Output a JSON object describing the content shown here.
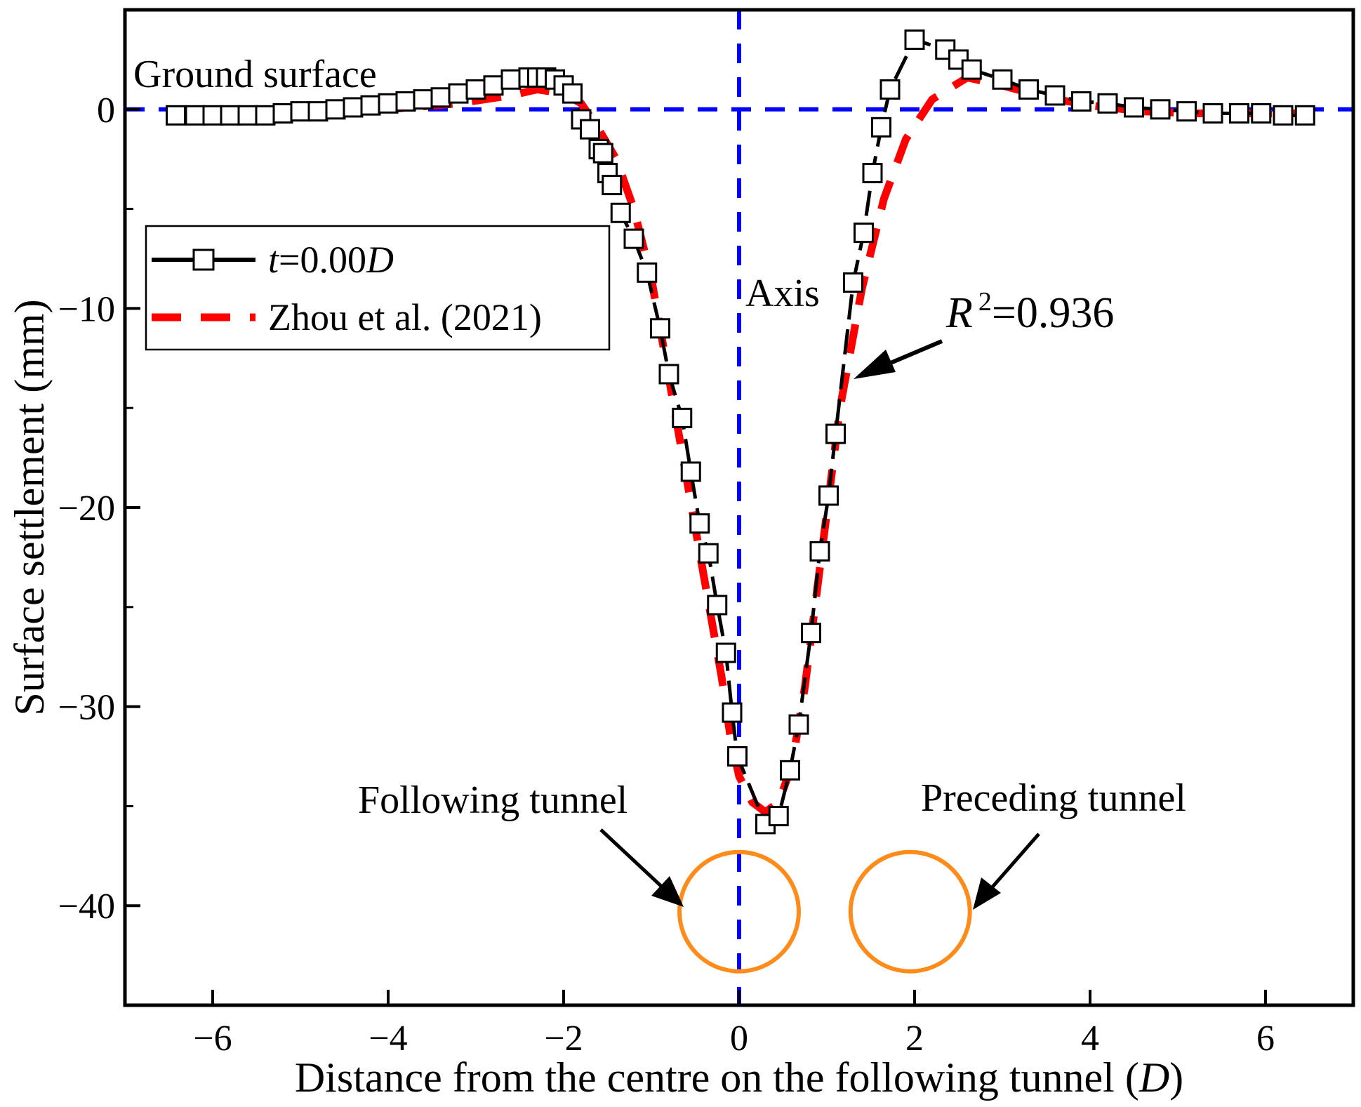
{
  "chart_data": {
    "type": "line",
    "xlabel": "Distance from the centre on the following tunnel (D)",
    "xlabel_main": "Distance from the centre on the following tunnel (",
    "xlabel_unit": "D",
    "xlabel_close": ")",
    "ylabel": "Surface settlement (mm)",
    "xlim": [
      -7,
      7
    ],
    "ylim": [
      -45,
      5
    ],
    "xticks": [
      -6,
      -4,
      -2,
      0,
      2,
      4,
      6
    ],
    "xtick_labels": [
      "−6",
      "−4",
      "−2",
      "0",
      "2",
      "4",
      "6"
    ],
    "yticks": [
      -40,
      -30,
      -20,
      -10,
      0
    ],
    "ytick_labels": [
      "−40",
      "−30",
      "−20",
      "−10",
      "0"
    ],
    "grid": false,
    "legend_position": "upper-left",
    "series": [
      {
        "name": "t=0.00D",
        "legend_italic_t": "t",
        "legend_mid": "=0.00",
        "legend_italic_d": "D",
        "color": "#000000",
        "marker": "open-square",
        "x": [
          -6.42,
          -6.2,
          -6.0,
          -5.8,
          -5.6,
          -5.4,
          -5.2,
          -5.0,
          -4.8,
          -4.6,
          -4.4,
          -4.2,
          -4.0,
          -3.8,
          -3.6,
          -3.4,
          -3.2,
          -3.0,
          -2.8,
          -2.6,
          -2.4,
          -2.3,
          -2.2,
          -2.1,
          -2.0,
          -1.9,
          -1.8,
          -1.7,
          -1.6,
          -1.55,
          -1.5,
          -1.45,
          -1.35,
          -1.2,
          -1.05,
          -0.9,
          -0.8,
          -0.65,
          -0.55,
          -0.45,
          -0.35,
          -0.25,
          -0.15,
          -0.08,
          -0.02,
          0.3,
          0.45,
          0.58,
          0.68,
          0.82,
          0.92,
          1.02,
          1.1,
          1.3,
          1.42,
          1.52,
          1.62,
          1.72,
          2.0,
          2.35,
          2.5,
          2.65,
          3.0,
          3.3,
          3.6,
          3.9,
          4.2,
          4.5,
          4.8,
          5.1,
          5.4,
          5.7,
          5.95,
          6.2,
          6.45
        ],
        "y": [
          -0.3,
          -0.3,
          -0.3,
          -0.3,
          -0.3,
          -0.3,
          -0.2,
          -0.1,
          -0.1,
          0.0,
          0.1,
          0.2,
          0.3,
          0.4,
          0.5,
          0.6,
          0.8,
          1.0,
          1.2,
          1.5,
          1.6,
          1.6,
          1.6,
          1.5,
          1.2,
          0.8,
          -0.5,
          -1.0,
          -2.0,
          -2.2,
          -3.2,
          -3.8,
          -5.2,
          -6.5,
          -8.2,
          -11.0,
          -13.3,
          -15.5,
          -18.2,
          -20.8,
          -22.3,
          -24.9,
          -27.3,
          -30.3,
          -32.5,
          -35.9,
          -35.5,
          -33.2,
          -30.9,
          -26.3,
          -22.2,
          -19.4,
          -16.3,
          -8.7,
          -6.2,
          -3.2,
          -0.9,
          1.0,
          3.5,
          3.0,
          2.5,
          2.0,
          1.5,
          1.0,
          0.7,
          0.4,
          0.3,
          0.1,
          0.0,
          -0.1,
          -0.2,
          -0.2,
          -0.2,
          -0.3,
          -0.3
        ]
      },
      {
        "name": "Zhou et al. (2021)",
        "color": "#ff0000",
        "x": [
          -6.4,
          -5.6,
          -4.8,
          -4.0,
          -3.2,
          -2.6,
          -2.3,
          -2.0,
          -1.8,
          -1.6,
          -1.4,
          -1.2,
          -1.0,
          -0.8,
          -0.6,
          -0.4,
          -0.2,
          -0.1,
          0.0,
          0.15,
          0.3,
          0.45,
          0.6,
          0.75,
          0.95,
          1.15,
          1.4,
          1.65,
          1.9,
          2.2,
          2.6,
          3.0,
          3.5,
          4.0,
          4.6,
          5.2,
          5.8,
          6.4
        ],
        "y": [
          -0.2,
          -0.2,
          -0.1,
          0.0,
          0.3,
          0.7,
          1.0,
          0.8,
          0.3,
          -1.0,
          -2.5,
          -5.0,
          -8.5,
          -13.5,
          -18.5,
          -23.5,
          -28.5,
          -31.5,
          -33.5,
          -34.8,
          -35.3,
          -34.8,
          -33.0,
          -29.0,
          -22.0,
          -15.0,
          -9.0,
          -4.5,
          -1.5,
          0.5,
          1.6,
          1.2,
          0.6,
          0.2,
          -0.1,
          -0.2,
          -0.2,
          -0.2
        ]
      }
    ],
    "reference_lines": [
      {
        "orientation": "horizontal",
        "value": 0,
        "color": "#0000ff",
        "style": "dashed"
      },
      {
        "orientation": "vertical",
        "value": 0,
        "color": "#0000ff",
        "style": "dashed"
      }
    ],
    "tunnels": [
      {
        "label": "Following tunnel",
        "center_x": 0.0,
        "center_y": -40.3,
        "radius_D": 0.68,
        "color": "#ff8c1a"
      },
      {
        "label": "Preceding tunnel",
        "center_x": 1.95,
        "center_y": -40.3,
        "radius_D": 0.68,
        "color": "#ff8c1a"
      }
    ],
    "annotations": {
      "ground_surface": "Ground surface",
      "axis": "Axis",
      "r2_symbol": "R",
      "r2_exponent": "2",
      "r2_value": "=0.936",
      "following_tunnel": "Following tunnel",
      "preceding_tunnel": "Preceding tunnel"
    }
  }
}
